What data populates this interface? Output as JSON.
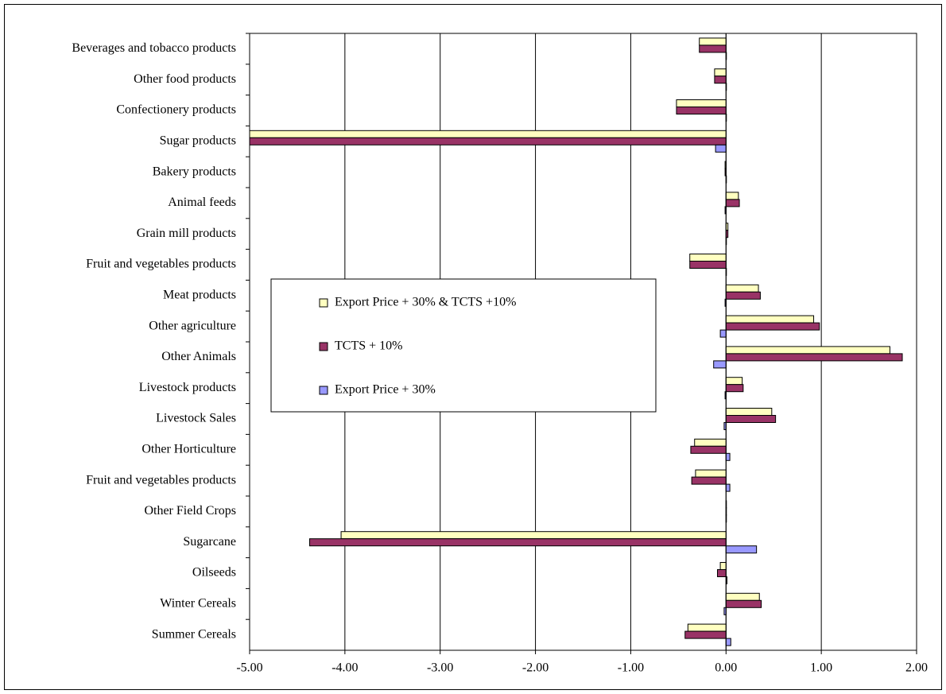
{
  "chart_data": {
    "type": "hbar",
    "categories": [
      "Beverages and tobacco products",
      "Other food products",
      "Confectionery products",
      "Sugar products",
      "Bakery products",
      "Animal feeds",
      "Grain mill products",
      "Fruit and vegetables products",
      "Meat products",
      "Other agriculture",
      "Other Animals",
      "Livestock products",
      "Livestock Sales",
      "Other Horticulture",
      "Fruit and vegetables products",
      "Other Field Crops",
      "Sugarcane",
      "Oilseeds",
      "Winter Cereals",
      "Summer Cereals"
    ],
    "series": [
      {
        "name": "Export Price + 30% & TCTS +10%",
        "color": "#ffffc0",
        "values": [
          -0.28,
          -0.12,
          -0.52,
          -5.0,
          -0.01,
          0.13,
          0.02,
          -0.38,
          0.34,
          0.92,
          1.72,
          0.17,
          0.48,
          -0.33,
          -0.32,
          0,
          -4.04,
          -0.06,
          0.35,
          -0.4
        ]
      },
      {
        "name": "TCTS + 10%",
        "color": "#993366",
        "values": [
          -0.28,
          -0.12,
          -0.52,
          -5.0,
          -0.01,
          0.14,
          0.02,
          -0.38,
          0.36,
          0.98,
          1.85,
          0.18,
          0.52,
          -0.37,
          -0.36,
          0,
          -4.37,
          -0.09,
          0.37,
          -0.43
        ]
      },
      {
        "name": "Export Price + 30%",
        "color": "#9999ff",
        "values": [
          0,
          0,
          0,
          -0.11,
          0,
          -0.01,
          0,
          0,
          -0.01,
          -0.06,
          -0.13,
          -0.01,
          -0.02,
          0.04,
          0.04,
          0,
          0.32,
          0.01,
          -0.02,
          0.05
        ]
      }
    ],
    "xlim": [
      -5,
      2
    ],
    "xticks": [
      {
        "value": -5,
        "label": "-5.00"
      },
      {
        "value": -4,
        "label": "-4.00"
      },
      {
        "value": -3,
        "label": "-3.00"
      },
      {
        "value": -2,
        "label": "-2.00"
      },
      {
        "value": -1,
        "label": "-1.00"
      },
      {
        "value": 0,
        "label": "0.00"
      },
      {
        "value": 1,
        "label": "1.00"
      },
      {
        "value": 2,
        "label": "2.00"
      }
    ],
    "grid": true
  }
}
